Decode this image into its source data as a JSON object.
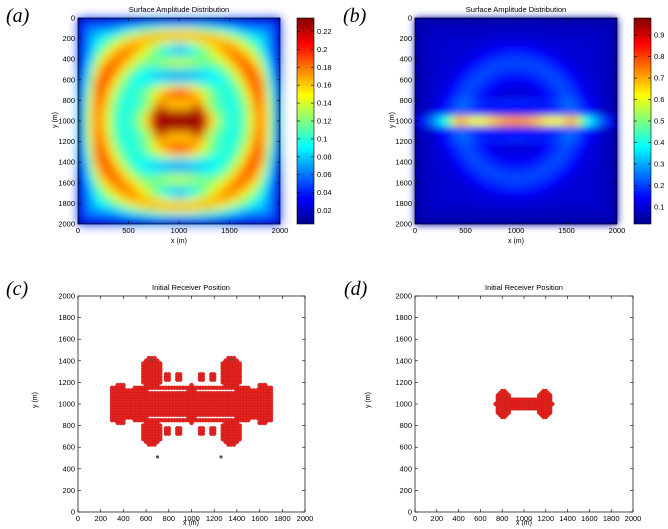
{
  "chart_data": [
    {
      "panel_label": "(a)",
      "type": "heatmap",
      "title": "Surface Amplitude Distribution",
      "xlabel": "x (m)",
      "ylabel": "y (m)",
      "xlim": [
        0,
        2000
      ],
      "ylim": [
        0,
        2000
      ],
      "y_reversed": true,
      "x_ticks": [
        "0",
        "500",
        "1000",
        "1500",
        "2000"
      ],
      "y_ticks": [
        "0",
        "200",
        "400",
        "600",
        "800",
        "1000",
        "1200",
        "1400",
        "1600",
        "1800",
        "2000"
      ],
      "colorbar": {
        "min": 0.005,
        "max": 0.235,
        "colormap": "jet",
        "ticks": [
          "0.02",
          "0.04",
          "0.06",
          "0.08",
          "0.1",
          "0.12",
          "0.14",
          "0.16",
          "0.18",
          "0.2",
          "0.22"
        ]
      },
      "pattern": "vertical",
      "colormap_colors": [
        "#00008f",
        "#0000ff",
        "#00ffff",
        "#ffff00",
        "#ff0000",
        "#800000"
      ]
    },
    {
      "panel_label": "(b)",
      "type": "heatmap",
      "title": "Surface Amplitude Distribution",
      "xlabel": "x (m)",
      "ylabel": "y (m)",
      "xlim": [
        0,
        2000
      ],
      "ylim": [
        0,
        2000
      ],
      "y_reversed": true,
      "x_ticks": [
        "0",
        "500",
        "1000",
        "1500",
        "2000"
      ],
      "y_ticks": [
        "0",
        "200",
        "400",
        "600",
        "800",
        "1000",
        "1200",
        "1400",
        "1600",
        "1800",
        "2000"
      ],
      "colorbar": {
        "min": 0.02,
        "max": 0.98,
        "colormap": "jet",
        "ticks": [
          "0.1",
          "0.2",
          "0.3",
          "0.4",
          "0.5",
          "0.6",
          "0.7",
          "0.8",
          "0.9"
        ]
      },
      "pattern": "horizontal",
      "colormap_colors": [
        "#00008f",
        "#0000ff",
        "#00ffff",
        "#ffff00",
        "#ff0000",
        "#800000"
      ]
    },
    {
      "panel_label": "(c)",
      "type": "scatter",
      "title": "Initial Receiver Position",
      "xlabel": "x (m)",
      "ylabel": "y (m)",
      "xlim": [
        0,
        2000
      ],
      "ylim": [
        0,
        2000
      ],
      "x_ticks": [
        "0",
        "200",
        "400",
        "600",
        "800",
        "1000",
        "1200",
        "1400",
        "1600",
        "1800",
        "2000"
      ],
      "y_ticks": [
        "0",
        "200",
        "400",
        "600",
        "800",
        "1000",
        "1200",
        "1400",
        "1600",
        "1800",
        "2000"
      ],
      "marker_color": "#e8231f",
      "grid_step": 25,
      "region": {
        "blob_x": [
          300,
          1720
        ],
        "blob_y": [
          820,
          1170
        ],
        "side_lobes": [
          [
            650,
            1280,
            100,
            150
          ],
          [
            1350,
            1280,
            100,
            150
          ],
          [
            650,
            740,
            90,
            120
          ],
          [
            1350,
            740,
            90,
            120
          ]
        ],
        "gap_rows": [
          1125,
          875
        ],
        "stray_points": [
          [
            700,
            510
          ],
          [
            1260,
            510
          ],
          [
            650,
            1410
          ],
          [
            1350,
            1410
          ]
        ]
      }
    },
    {
      "panel_label": "(d)",
      "type": "scatter",
      "title": "Initial Receiver Position",
      "xlabel": "x (m)",
      "ylabel": "y (m)",
      "xlim": [
        0,
        2000
      ],
      "ylim": [
        0,
        2000
      ],
      "x_ticks": [
        "0",
        "200",
        "400",
        "600",
        "800",
        "1000",
        "1200",
        "1400",
        "1600",
        "1800",
        "2000"
      ],
      "y_ticks": [
        "0",
        "200",
        "400",
        "600",
        "800",
        "1000",
        "1200",
        "1400",
        "1600",
        "1800",
        "2000"
      ],
      "marker_color": "#e8231f",
      "grid_step": 20,
      "region": {
        "lobes": [
          [
            810,
            1000,
            70,
            130
          ],
          [
            1190,
            1000,
            70,
            130
          ]
        ],
        "bar_x": [
          820,
          1180
        ],
        "bar_y": [
          955,
          1045
        ]
      }
    }
  ]
}
